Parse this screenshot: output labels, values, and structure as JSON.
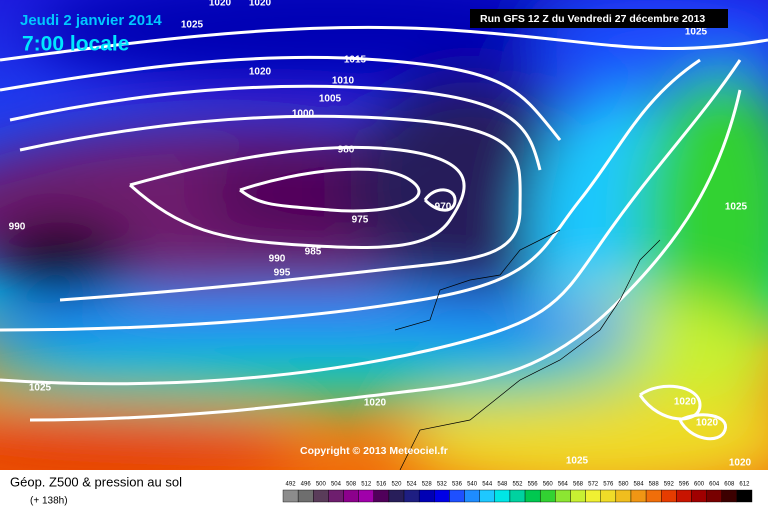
{
  "header": {
    "date": "Jeudi 2 janvier 2014",
    "time": "7:00 locale",
    "run": "Run GFS 12 Z du Vendredi 27 décembre 2013"
  },
  "copyright": "Copyright © 2013 Meteociel.fr",
  "footer": {
    "title": "Géop. Z500 & pression au sol",
    "lead": "(+ 138h)"
  },
  "isobar_labels": [
    1020,
    1020,
    1025,
    1020,
    1015,
    1010,
    1005,
    1000,
    980,
    975,
    970,
    985,
    990,
    995,
    990,
    1025,
    1020,
    1025,
    1020,
    1020,
    1020,
    1025,
    1025
  ],
  "legend": {
    "items": [
      {
        "value": 492,
        "color": "#8c8c8c"
      },
      {
        "value": 496,
        "color": "#6e6e6e"
      },
      {
        "value": 500,
        "color": "#5a3c5a"
      },
      {
        "value": 504,
        "color": "#6e1e6e"
      },
      {
        "value": 508,
        "color": "#8c008c"
      },
      {
        "value": 512,
        "color": "#a000aa"
      },
      {
        "value": 516,
        "color": "#50005a"
      },
      {
        "value": 520,
        "color": "#281e5a"
      },
      {
        "value": 524,
        "color": "#1e1e82"
      },
      {
        "value": 528,
        "color": "#0000b4"
      },
      {
        "value": 532,
        "color": "#0000e6"
      },
      {
        "value": 536,
        "color": "#1e50ff"
      },
      {
        "value": 540,
        "color": "#1e8cff"
      },
      {
        "value": 544,
        "color": "#1ec8ff"
      },
      {
        "value": 548,
        "color": "#00e6e6"
      },
      {
        "value": 552,
        "color": "#00d2a0"
      },
      {
        "value": 556,
        "color": "#00c850"
      },
      {
        "value": 560,
        "color": "#32d232"
      },
      {
        "value": 564,
        "color": "#8ce632"
      },
      {
        "value": 568,
        "color": "#c8f032"
      },
      {
        "value": 572,
        "color": "#f0f032"
      },
      {
        "value": 576,
        "color": "#f0dc28"
      },
      {
        "value": 580,
        "color": "#f0be1e"
      },
      {
        "value": 584,
        "color": "#f09614"
      },
      {
        "value": 588,
        "color": "#f06e0a"
      },
      {
        "value": 592,
        "color": "#e63c00"
      },
      {
        "value": 596,
        "color": "#c81400"
      },
      {
        "value": 600,
        "color": "#a00000"
      },
      {
        "value": 604,
        "color": "#780000"
      },
      {
        "value": 608,
        "color": "#3c0000"
      },
      {
        "value": 612,
        "color": "#000000"
      }
    ]
  }
}
